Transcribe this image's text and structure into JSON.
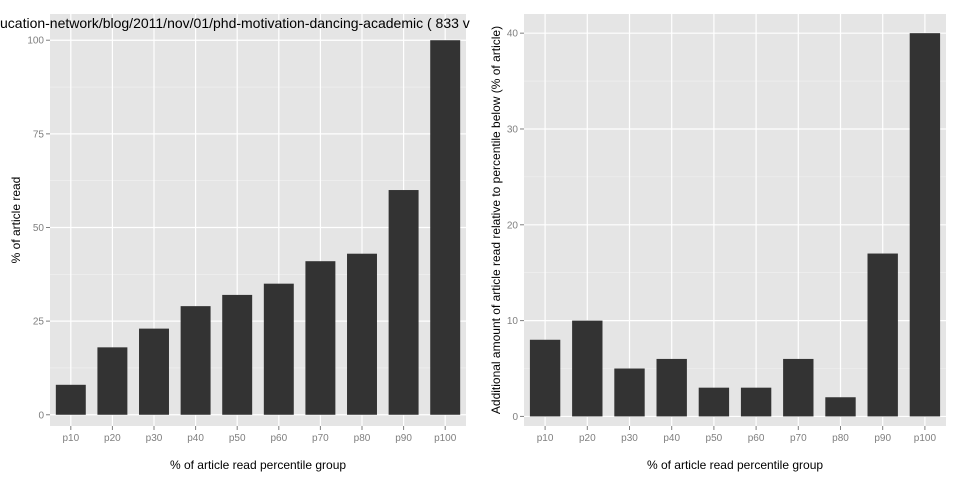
{
  "chart_data": [
    {
      "type": "bar",
      "title": "ucation-network/blog/2011/nov/01/phd-motivation-dancing-academic ( 833 v",
      "xlabel": "% of article read percentile group",
      "ylabel": "% of article read",
      "categories": [
        "p10",
        "p20",
        "p30",
        "p40",
        "p50",
        "p60",
        "p70",
        "p80",
        "p90",
        "p100"
      ],
      "values": [
        8,
        18,
        23,
        29,
        32,
        35,
        41,
        43,
        60,
        100
      ],
      "ylim": [
        -3,
        107
      ],
      "yticks": [
        0,
        25,
        50,
        75,
        100
      ],
      "grid": true,
      "panel_background": "#e5e5e5",
      "bar_color": "#333333"
    },
    {
      "type": "bar",
      "title": "",
      "xlabel": "% of article read percentile group",
      "ylabel": "Additional amount of article read relative to percentile below (% of article)",
      "categories": [
        "p10",
        "p20",
        "p30",
        "p40",
        "p50",
        "p60",
        "p70",
        "p80",
        "p90",
        "p100"
      ],
      "values": [
        8,
        10,
        5,
        6,
        3,
        3,
        6,
        2,
        17,
        40
      ],
      "ylim": [
        -1,
        42
      ],
      "yticks": [
        0,
        10,
        20,
        30,
        40
      ],
      "grid": true,
      "panel_background": "#e5e5e5",
      "bar_color": "#333333"
    }
  ]
}
